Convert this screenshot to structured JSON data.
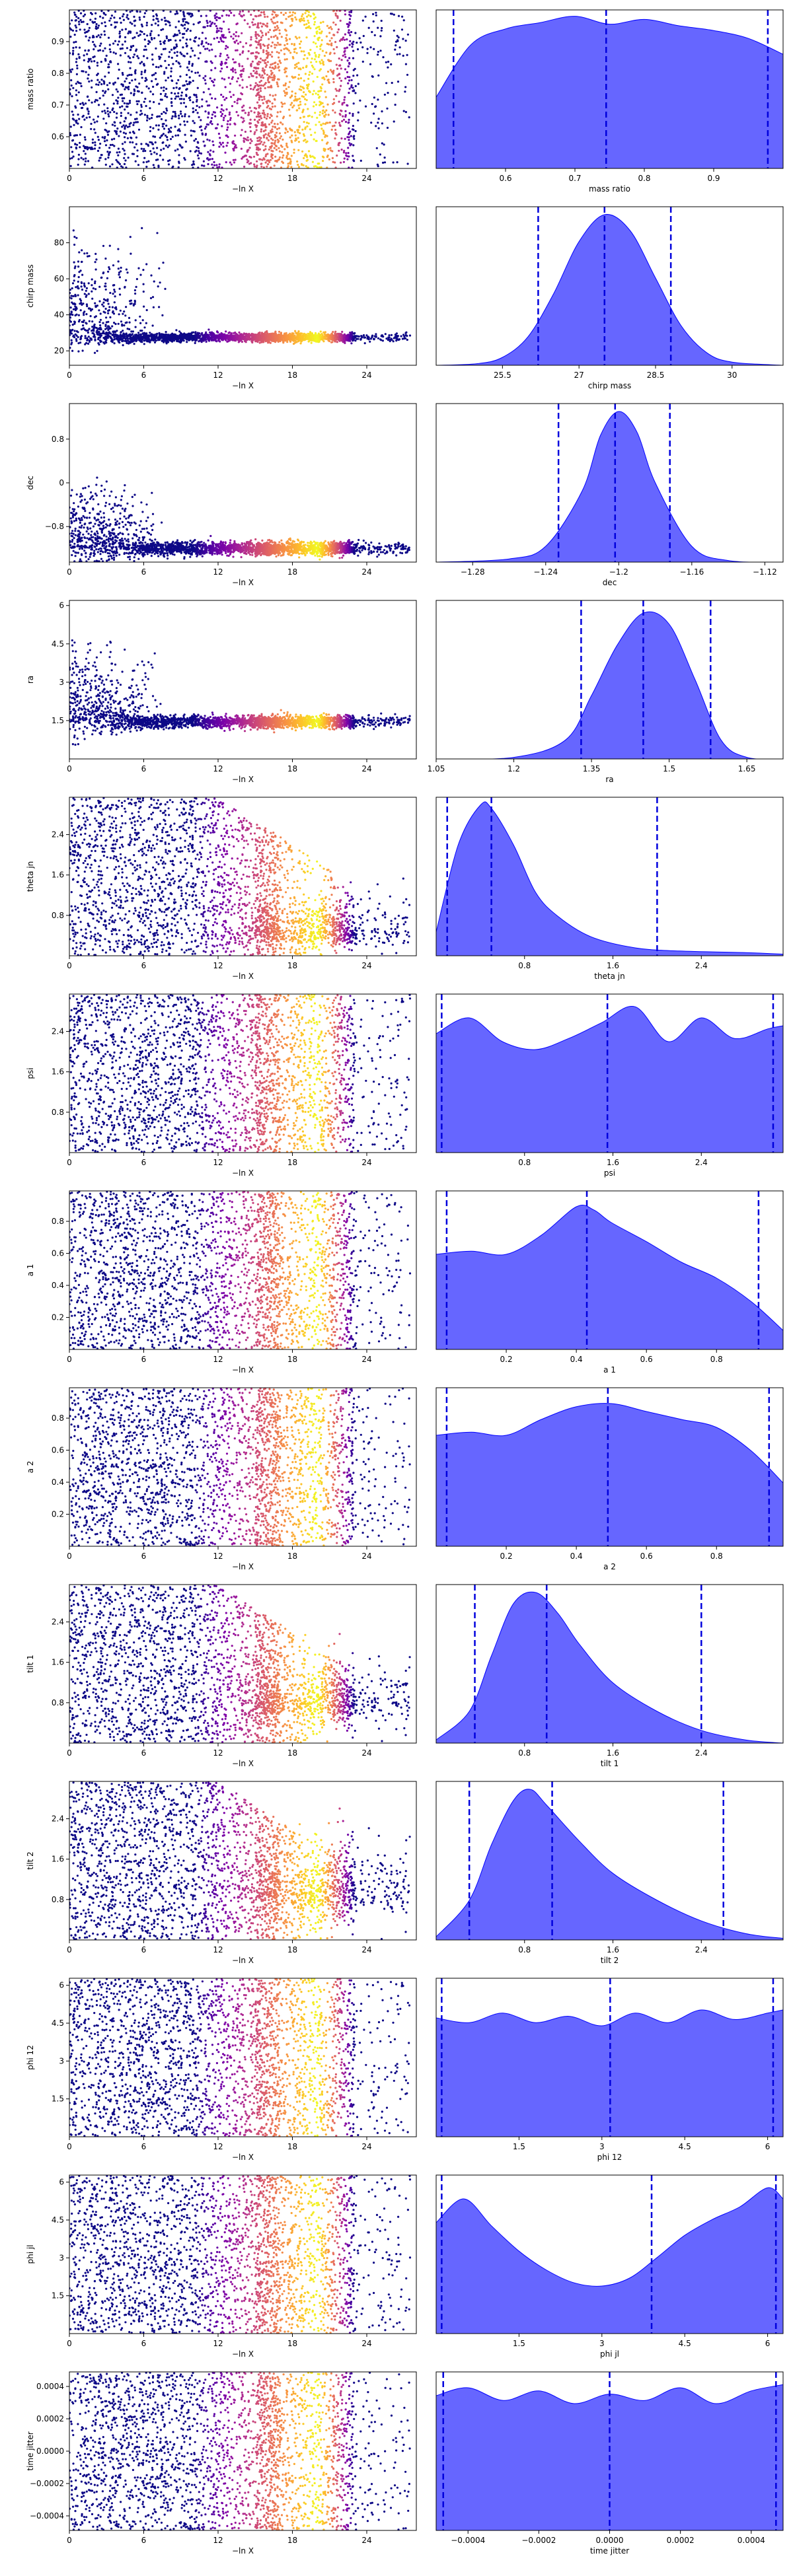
{
  "chart_data": [
    {
      "panel": "trace",
      "type": "scatter",
      "ylabel": "mass ratio",
      "xlabel": "−ln X",
      "xlim": [
        0,
        28
      ],
      "ylim": [
        0.5,
        1.0
      ],
      "xticks": [
        0,
        6,
        12,
        18,
        24
      ],
      "yticks": [
        0.6,
        0.7,
        0.8,
        0.9
      ],
      "mode": "uniform"
    },
    {
      "panel": "kde",
      "type": "area",
      "xlabel": "mass ratio",
      "xlim": [
        0.5,
        1.0
      ],
      "xticks": [
        0.6,
        0.7,
        0.8,
        0.9
      ],
      "quantiles": [
        0.525,
        0.745,
        0.978
      ],
      "density": {
        "x": [
          0.5,
          0.55,
          0.6,
          0.65,
          0.7,
          0.75,
          0.8,
          0.85,
          0.9,
          0.95,
          1.0
        ],
        "y": [
          0.45,
          0.78,
          0.88,
          0.92,
          0.96,
          0.91,
          0.94,
          0.9,
          0.87,
          0.82,
          0.72
        ]
      }
    },
    {
      "panel": "trace",
      "type": "scatter",
      "ylabel": "chirp mass",
      "xlabel": "−ln X",
      "xlim": [
        0,
        28
      ],
      "ylim": [
        12,
        100
      ],
      "xticks": [
        0,
        6,
        12,
        18,
        24
      ],
      "yticks": [
        20,
        40,
        60,
        80
      ],
      "mode": "converge",
      "center": 27.5,
      "spread": 1.2,
      "topSpread": 45
    },
    {
      "panel": "kde",
      "type": "area",
      "xlabel": "chirp mass",
      "xlim": [
        24.2,
        31.0
      ],
      "xticks": [
        25.5,
        27.0,
        28.5,
        30.0
      ],
      "quantiles": [
        26.2,
        27.5,
        28.8
      ],
      "density": {
        "x": [
          24.2,
          25.0,
          25.5,
          26.0,
          26.5,
          27.0,
          27.5,
          28.0,
          28.5,
          29.0,
          29.5,
          30.0,
          31.0
        ],
        "y": [
          0,
          0.01,
          0.05,
          0.18,
          0.45,
          0.78,
          0.95,
          0.85,
          0.55,
          0.25,
          0.08,
          0.02,
          0
        ]
      }
    },
    {
      "panel": "trace",
      "type": "scatter",
      "ylabel": "dec",
      "xlabel": "−ln X",
      "xlim": [
        0,
        28
      ],
      "ylim": [
        -1.45,
        1.45
      ],
      "xticks": [
        0,
        6,
        12,
        18,
        24
      ],
      "yticks": [
        -0.8,
        0.0,
        0.8
      ],
      "mode": "converge",
      "center": -1.2,
      "spread": 0.06,
      "topSpread": 1.0
    },
    {
      "panel": "kde",
      "type": "area",
      "xlabel": "dec",
      "xlim": [
        -1.3,
        -1.11
      ],
      "xticks": [
        -1.28,
        -1.24,
        -1.2,
        -1.16,
        -1.12
      ],
      "quantiles": [
        -1.233,
        -1.202,
        -1.172
      ],
      "density": {
        "x": [
          -1.3,
          -1.26,
          -1.24,
          -1.22,
          -1.21,
          -1.2,
          -1.19,
          -1.18,
          -1.16,
          -1.14,
          -1.11
        ],
        "y": [
          0,
          0.02,
          0.1,
          0.45,
          0.8,
          0.95,
          0.82,
          0.5,
          0.1,
          0.01,
          0
        ]
      }
    },
    {
      "panel": "trace",
      "type": "scatter",
      "ylabel": "ra",
      "xlabel": "−ln X",
      "xlim": [
        0,
        28
      ],
      "ylim": [
        0,
        6.2
      ],
      "xticks": [
        0,
        6,
        12,
        18,
        24
      ],
      "yticks": [
        1.5,
        3.0,
        4.5,
        6.0
      ],
      "mode": "converge",
      "center": 1.45,
      "spread": 0.12,
      "topSpread": 2.5
    },
    {
      "panel": "kde",
      "type": "area",
      "xlabel": "ra",
      "xlim": [
        1.05,
        1.72
      ],
      "xticks": [
        1.05,
        1.2,
        1.35,
        1.5,
        1.65
      ],
      "quantiles": [
        1.33,
        1.45,
        1.58
      ],
      "density": {
        "x": [
          1.05,
          1.2,
          1.3,
          1.35,
          1.4,
          1.45,
          1.5,
          1.55,
          1.6,
          1.65,
          1.72
        ],
        "y": [
          0,
          0.01,
          0.12,
          0.4,
          0.72,
          0.92,
          0.85,
          0.5,
          0.12,
          0.01,
          0
        ]
      }
    },
    {
      "panel": "trace",
      "type": "scatter",
      "ylabel": "theta jn",
      "xlabel": "−ln X",
      "xlim": [
        0,
        28
      ],
      "ylim": [
        0,
        3.14
      ],
      "xticks": [
        0,
        6,
        12,
        18,
        24
      ],
      "yticks": [
        0.8,
        1.6,
        2.4
      ],
      "mode": "shrink",
      "center": 0.5,
      "spread": 0.35
    },
    {
      "panel": "kde",
      "type": "area",
      "xlabel": "theta jn",
      "xlim": [
        0,
        3.14
      ],
      "xticks": [
        0.8,
        1.6,
        2.4
      ],
      "quantiles": [
        0.1,
        0.5,
        2.0
      ],
      "density": {
        "x": [
          0,
          0.2,
          0.4,
          0.5,
          0.7,
          0.9,
          1.1,
          1.4,
          1.8,
          2.2,
          2.8,
          3.14
        ],
        "y": [
          0.15,
          0.7,
          0.95,
          0.93,
          0.7,
          0.4,
          0.25,
          0.12,
          0.05,
          0.03,
          0.02,
          0.01
        ]
      }
    },
    {
      "panel": "trace",
      "type": "scatter",
      "ylabel": "psi",
      "xlabel": "−ln X",
      "xlim": [
        0,
        28
      ],
      "ylim": [
        0,
        3.14
      ],
      "xticks": [
        0,
        6,
        12,
        18,
        24
      ],
      "yticks": [
        0.8,
        1.6,
        2.4
      ],
      "mode": "uniform"
    },
    {
      "panel": "kde",
      "type": "area",
      "xlabel": "psi",
      "xlim": [
        0,
        3.14
      ],
      "xticks": [
        0.8,
        1.6,
        2.4
      ],
      "quantiles": [
        0.05,
        1.55,
        3.05
      ],
      "density": {
        "x": [
          0,
          0.3,
          0.6,
          0.9,
          1.2,
          1.5,
          1.8,
          2.1,
          2.4,
          2.7,
          3.0,
          3.14
        ],
        "y": [
          0.75,
          0.85,
          0.7,
          0.65,
          0.72,
          0.82,
          0.92,
          0.7,
          0.85,
          0.72,
          0.78,
          0.8
        ]
      }
    },
    {
      "panel": "trace",
      "type": "scatter",
      "ylabel": "a 1",
      "xlabel": "−ln X",
      "xlim": [
        0,
        28
      ],
      "ylim": [
        0,
        0.99
      ],
      "xticks": [
        0,
        6,
        12,
        18,
        24
      ],
      "yticks": [
        0.2,
        0.4,
        0.6,
        0.8
      ],
      "mode": "uniform"
    },
    {
      "panel": "kde",
      "type": "area",
      "xlabel": "a 1",
      "xlim": [
        0,
        0.99
      ],
      "xticks": [
        0.2,
        0.4,
        0.6,
        0.8
      ],
      "quantiles": [
        0.03,
        0.43,
        0.92
      ],
      "density": {
        "x": [
          0,
          0.1,
          0.2,
          0.3,
          0.4,
          0.45,
          0.5,
          0.6,
          0.7,
          0.8,
          0.9,
          0.99
        ],
        "y": [
          0.6,
          0.62,
          0.6,
          0.72,
          0.9,
          0.88,
          0.8,
          0.68,
          0.55,
          0.45,
          0.3,
          0.12
        ]
      }
    },
    {
      "panel": "trace",
      "type": "scatter",
      "ylabel": "a 2",
      "xlabel": "−ln X",
      "xlim": [
        0,
        28
      ],
      "ylim": [
        0,
        0.99
      ],
      "xticks": [
        0,
        6,
        12,
        18,
        24
      ],
      "yticks": [
        0.2,
        0.4,
        0.6,
        0.8
      ],
      "mode": "uniform"
    },
    {
      "panel": "kde",
      "type": "area",
      "xlabel": "a 2",
      "xlim": [
        0,
        0.99
      ],
      "xticks": [
        0.2,
        0.4,
        0.6,
        0.8
      ],
      "quantiles": [
        0.03,
        0.49,
        0.95
      ],
      "density": {
        "x": [
          0,
          0.1,
          0.2,
          0.3,
          0.4,
          0.5,
          0.6,
          0.7,
          0.8,
          0.9,
          0.99
        ],
        "y": [
          0.7,
          0.72,
          0.7,
          0.8,
          0.88,
          0.9,
          0.85,
          0.8,
          0.75,
          0.6,
          0.4
        ]
      }
    },
    {
      "panel": "trace",
      "type": "scatter",
      "ylabel": "tilt 1",
      "xlabel": "−ln X",
      "xlim": [
        0,
        28
      ],
      "ylim": [
        0,
        3.14
      ],
      "xticks": [
        0,
        6,
        12,
        18,
        24
      ],
      "yticks": [
        0.8,
        1.6,
        2.4
      ],
      "mode": "shrink",
      "center": 0.85,
      "spread": 0.45
    },
    {
      "panel": "kde",
      "type": "area",
      "xlabel": "tilt 1",
      "xlim": [
        0,
        3.14
      ],
      "xticks": [
        0.8,
        1.6,
        2.4
      ],
      "quantiles": [
        0.35,
        1.0,
        2.4
      ],
      "density": {
        "x": [
          0,
          0.3,
          0.5,
          0.7,
          0.9,
          1.1,
          1.3,
          1.6,
          2.0,
          2.4,
          2.8,
          3.14
        ],
        "y": [
          0.02,
          0.2,
          0.55,
          0.88,
          0.95,
          0.82,
          0.62,
          0.38,
          0.2,
          0.08,
          0.02,
          0
        ]
      }
    },
    {
      "panel": "trace",
      "type": "scatter",
      "ylabel": "tilt 2",
      "xlabel": "−ln X",
      "xlim": [
        0,
        28
      ],
      "ylim": [
        0,
        3.14
      ],
      "xticks": [
        0,
        6,
        12,
        18,
        24
      ],
      "yticks": [
        0.8,
        1.6,
        2.4
      ],
      "mode": "shrink",
      "center": 1.0,
      "spread": 0.55
    },
    {
      "panel": "kde",
      "type": "area",
      "xlabel": "tilt 2",
      "xlim": [
        0,
        3.14
      ],
      "xticks": [
        0.8,
        1.6,
        2.4
      ],
      "quantiles": [
        0.3,
        1.05,
        2.6
      ],
      "density": {
        "x": [
          0,
          0.3,
          0.5,
          0.7,
          0.85,
          1.0,
          1.3,
          1.6,
          2.0,
          2.4,
          2.8,
          3.14
        ],
        "y": [
          0.02,
          0.25,
          0.6,
          0.88,
          0.95,
          0.85,
          0.62,
          0.42,
          0.25,
          0.12,
          0.04,
          0.01
        ]
      }
    },
    {
      "panel": "trace",
      "type": "scatter",
      "ylabel": "phi 12",
      "xlabel": "−ln X",
      "xlim": [
        0,
        28
      ],
      "ylim": [
        0,
        6.28
      ],
      "xticks": [
        0,
        6,
        12,
        18,
        24
      ],
      "yticks": [
        1.5,
        3.0,
        4.5,
        6.0
      ],
      "mode": "uniform"
    },
    {
      "panel": "kde",
      "type": "area",
      "xlabel": "phi 12",
      "xlim": [
        0,
        6.28
      ],
      "xticks": [
        1.5,
        3.0,
        4.5,
        6.0
      ],
      "quantiles": [
        0.1,
        3.15,
        6.1
      ],
      "density": {
        "x": [
          0,
          0.6,
          1.2,
          1.8,
          2.4,
          3.0,
          3.6,
          4.2,
          4.8,
          5.4,
          6.0,
          6.28
        ],
        "y": [
          0.75,
          0.72,
          0.78,
          0.72,
          0.76,
          0.7,
          0.78,
          0.72,
          0.8,
          0.74,
          0.78,
          0.8
        ]
      }
    },
    {
      "panel": "trace",
      "type": "scatter",
      "ylabel": "phi jl",
      "xlabel": "−ln X",
      "xlim": [
        0,
        28
      ],
      "ylim": [
        0,
        6.28
      ],
      "xticks": [
        0,
        6,
        12,
        18,
        24
      ],
      "yticks": [
        1.5,
        3.0,
        4.5,
        6.0
      ],
      "mode": "uniform"
    },
    {
      "panel": "kde",
      "type": "area",
      "xlabel": "phi jl",
      "xlim": [
        0,
        6.28
      ],
      "xticks": [
        1.5,
        3.0,
        4.5,
        6.0
      ],
      "quantiles": [
        0.1,
        3.9,
        6.15
      ],
      "density": {
        "x": [
          0,
          0.5,
          1.0,
          1.5,
          2.0,
          2.5,
          3.0,
          3.5,
          4.0,
          4.5,
          5.0,
          5.5,
          6.0,
          6.28
        ],
        "y": [
          0.7,
          0.85,
          0.68,
          0.52,
          0.4,
          0.32,
          0.3,
          0.35,
          0.48,
          0.62,
          0.72,
          0.8,
          0.92,
          0.85
        ]
      }
    },
    {
      "panel": "trace",
      "type": "scatter",
      "ylabel": "time jitter",
      "xlabel": "−ln X",
      "xlim": [
        0,
        28
      ],
      "ylim": [
        -0.00049,
        0.00049
      ],
      "xticks": [
        0,
        6,
        12,
        18,
        24
      ],
      "yticks": [
        -0.0004,
        -0.0002,
        0.0,
        0.0002,
        0.0004
      ],
      "ytickLabels": [
        "−0.0004",
        "−0.0002",
        "0.0000",
        "0.0002",
        "0.0004"
      ],
      "mode": "uniform"
    },
    {
      "panel": "kde",
      "type": "area",
      "xlabel": "time jitter",
      "xlim": [
        -0.00049,
        0.00049
      ],
      "xticks": [
        -0.0004,
        -0.0002,
        0.0,
        0.0002,
        0.0004
      ],
      "xtickLabels": [
        "−0.0004",
        "−0.0002",
        "0.0000",
        "0.0002",
        "0.0004"
      ],
      "quantiles": [
        -0.00047,
        0.0,
        0.00047
      ],
      "density": {
        "x": [
          -0.00049,
          -0.0004,
          -0.0003,
          -0.0002,
          -0.0001,
          0.0,
          0.0001,
          0.0002,
          0.0003,
          0.0004,
          0.00049
        ],
        "y": [
          0.85,
          0.9,
          0.82,
          0.88,
          0.8,
          0.86,
          0.82,
          0.9,
          0.8,
          0.88,
          0.92
        ]
      }
    }
  ],
  "colors": {
    "kde_fill": "#6666ff",
    "kde_line": "#0000ff",
    "quantile_line": "#0000dd",
    "axis": "#000000"
  }
}
